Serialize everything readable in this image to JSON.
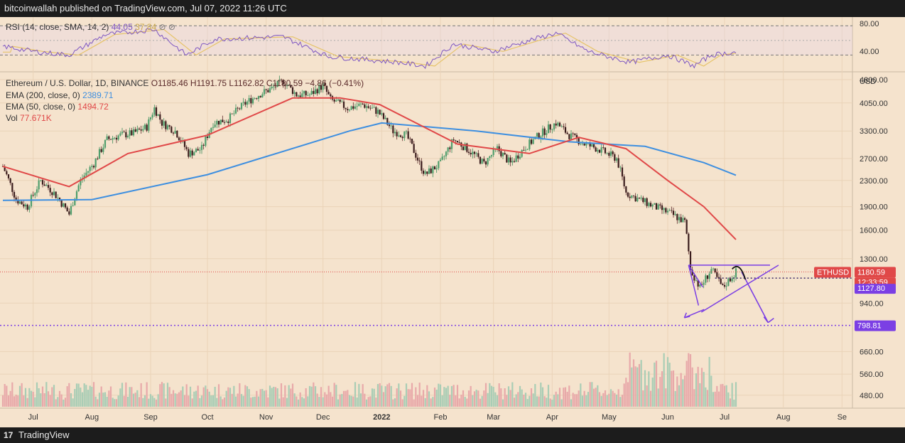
{
  "header": {
    "published": "bitcoinwallah published on TradingView.com, Jul 07, 2022 11:26 UTC"
  },
  "footer": {
    "logo_mark": "17",
    "brand": "TradingView"
  },
  "colors": {
    "background": "#f5e3cd",
    "up": "#3c8c5a",
    "down": "#5a2a2a",
    "ema200": "#3e8fe0",
    "ema50": "#e04848",
    "rsi": "#7e57c2",
    "rsi_sma": "#e6c46a",
    "pattern": "#7b3fe4"
  },
  "rsi_panel": {
    "title": "RSI (14, close, SMA, 14, 2)",
    "rsi_value": "44.05",
    "sma_value": "37.84",
    "levels": [
      "80.00",
      "40.00"
    ]
  },
  "legend": {
    "symbol": "Ethereum / U.S. Dollar, 1D, BINANCE",
    "ohlc": "O1185.46  H1191.75  L1162.82  C1180.59  −4.86 (−0.41%)",
    "ema200_label": "EMA (200, close, 0)",
    "ema200_value": "2389.71",
    "ema50_label": "EMA (50, close, 0)",
    "ema50_value": "1494.72",
    "vol_label": "Vol",
    "vol_value": "77.671K"
  },
  "price_axis": {
    "currency": "USD",
    "ticks": [
      "4800.00",
      "4050.00",
      "3300.00",
      "2700.00",
      "2300.00",
      "1900.00",
      "1600.00",
      "1300.00",
      "940.00",
      "660.00",
      "560.00",
      "480.00"
    ],
    "badges": {
      "symbol": "ETHUSD",
      "last_price": "1180.59",
      "countdown": "12:33:59",
      "neckline": "1127.80",
      "target": "798.81"
    }
  },
  "time_axis": {
    "labels": [
      "Jul",
      "Aug",
      "Sep",
      "Oct",
      "Nov",
      "Dec",
      "2022",
      "Feb",
      "Mar",
      "Apr",
      "May",
      "Jun",
      "Jul",
      "Aug",
      "Se"
    ]
  },
  "chart_data": {
    "type": "candlestick",
    "title": "Ethereum / U.S. Dollar, 1D, BINANCE",
    "y_scale": "log",
    "ylim": [
      460,
      6000
    ],
    "x_range": [
      "2021-06-15",
      "2022-09-05"
    ],
    "series": [
      {
        "name": "EMA (200, close, 0)",
        "last": 2389.71
      },
      {
        "name": "EMA (50, close, 0)",
        "last": 1494.72
      },
      {
        "name": "Vol",
        "last": "77.671K"
      }
    ],
    "close_path": [
      [
        "2021-06-15",
        2550
      ],
      [
        "2021-06-22",
        2000
      ],
      [
        "2021-06-28",
        1900
      ],
      [
        "2021-07-05",
        2300
      ],
      [
        "2021-07-12",
        2100
      ],
      [
        "2021-07-20",
        1800
      ],
      [
        "2021-07-26",
        2300
      ],
      [
        "2021-08-02",
        2600
      ],
      [
        "2021-08-09",
        3100
      ],
      [
        "2021-08-16",
        3200
      ],
      [
        "2021-08-23",
        3250
      ],
      [
        "2021-08-30",
        3400
      ],
      [
        "2021-09-03",
        3900
      ],
      [
        "2021-09-07",
        3500
      ],
      [
        "2021-09-14",
        3300
      ],
      [
        "2021-09-21",
        2800
      ],
      [
        "2021-09-28",
        2900
      ],
      [
        "2021-10-04",
        3500
      ],
      [
        "2021-10-12",
        3600
      ],
      [
        "2021-10-20",
        4000
      ],
      [
        "2021-10-28",
        4300
      ],
      [
        "2021-11-04",
        4500
      ],
      [
        "2021-11-10",
        4750
      ],
      [
        "2021-11-17",
        4300
      ],
      [
        "2021-11-24",
        4300
      ],
      [
        "2021-12-01",
        4600
      ],
      [
        "2021-12-05",
        4150
      ],
      [
        "2021-12-14",
        3900
      ],
      [
        "2021-12-22",
        4000
      ],
      [
        "2021-12-30",
        3800
      ],
      [
        "2022-01-07",
        3300
      ],
      [
        "2022-01-14",
        3200
      ],
      [
        "2022-01-21",
        2600
      ],
      [
        "2022-01-24",
        2400
      ],
      [
        "2022-02-01",
        2600
      ],
      [
        "2022-02-08",
        3100
      ],
      [
        "2022-02-15",
        2900
      ],
      [
        "2022-02-24",
        2600
      ],
      [
        "2022-03-03",
        2900
      ],
      [
        "2022-03-10",
        2600
      ],
      [
        "2022-03-17",
        2900
      ],
      [
        "2022-03-25",
        3200
      ],
      [
        "2022-04-03",
        3500
      ],
      [
        "2022-04-10",
        3200
      ],
      [
        "2022-04-18",
        3000
      ],
      [
        "2022-04-25",
        2900
      ],
      [
        "2022-05-05",
        2700
      ],
      [
        "2022-05-10",
        2100
      ],
      [
        "2022-05-17",
        2000
      ],
      [
        "2022-05-25",
        1900
      ],
      [
        "2022-06-03",
        1800
      ],
      [
        "2022-06-10",
        1700
      ],
      [
        "2022-06-13",
        1200
      ],
      [
        "2022-06-18",
        1050
      ],
      [
        "2022-06-24",
        1200
      ],
      [
        "2022-06-30",
        1050
      ],
      [
        "2022-07-07",
        1180.59
      ]
    ],
    "ema200_path": [
      [
        "2021-06-15",
        1990
      ],
      [
        "2021-08-01",
        2000
      ],
      [
        "2021-10-01",
        2400
      ],
      [
        "2021-12-15",
        3300
      ],
      [
        "2022-01-01",
        3500
      ],
      [
        "2022-02-20",
        3300
      ],
      [
        "2022-04-10",
        3050
      ],
      [
        "2022-05-20",
        2950
      ],
      [
        "2022-06-20",
        2620
      ],
      [
        "2022-07-07",
        2389.71
      ]
    ],
    "ema50_path": [
      [
        "2021-06-15",
        2550
      ],
      [
        "2021-07-20",
        2200
      ],
      [
        "2021-08-20",
        2800
      ],
      [
        "2021-10-01",
        3200
      ],
      [
        "2021-11-15",
        4200
      ],
      [
        "2021-12-10",
        4200
      ],
      [
        "2021-12-31",
        4000
      ],
      [
        "2022-02-10",
        3000
      ],
      [
        "2022-03-20",
        2800
      ],
      [
        "2022-04-15",
        3150
      ],
      [
        "2022-05-10",
        2900
      ],
      [
        "2022-06-01",
        2300
      ],
      [
        "2022-06-20",
        1900
      ],
      [
        "2022-07-07",
        1494.72
      ]
    ],
    "rsi": {
      "ylim": [
        20,
        90
      ],
      "levels": [
        80,
        40
      ],
      "current": 44.05,
      "sma": 37.84,
      "path": [
        [
          "2021-06-15",
          52
        ],
        [
          "2021-07-01",
          45
        ],
        [
          "2021-07-20",
          40
        ],
        [
          "2021-08-08",
          68
        ],
        [
          "2021-09-03",
          75
        ],
        [
          "2021-09-20",
          40
        ],
        [
          "2021-10-05",
          62
        ],
        [
          "2021-11-10",
          65
        ],
        [
          "2021-12-04",
          38
        ],
        [
          "2022-01-10",
          30
        ],
        [
          "2022-01-24",
          25
        ],
        [
          "2022-02-08",
          55
        ],
        [
          "2022-03-01",
          45
        ],
        [
          "2022-03-20",
          60
        ],
        [
          "2022-04-03",
          70
        ],
        [
          "2022-04-20",
          45
        ],
        [
          "2022-05-12",
          30
        ],
        [
          "2022-06-01",
          40
        ],
        [
          "2022-06-15",
          25
        ],
        [
          "2022-06-24",
          40
        ],
        [
          "2022-07-07",
          44.05
        ]
      ]
    },
    "annotations": {
      "last_price": 1180.59,
      "neckline": 1127.8,
      "target": 798.81,
      "triangle_top": 1240,
      "triangle_apex_date": "2022-07-25",
      "wedge_left_top_date": "2022-06-12",
      "wedge_left_low": 880,
      "arrow_target_date": "2022-07-24"
    }
  }
}
